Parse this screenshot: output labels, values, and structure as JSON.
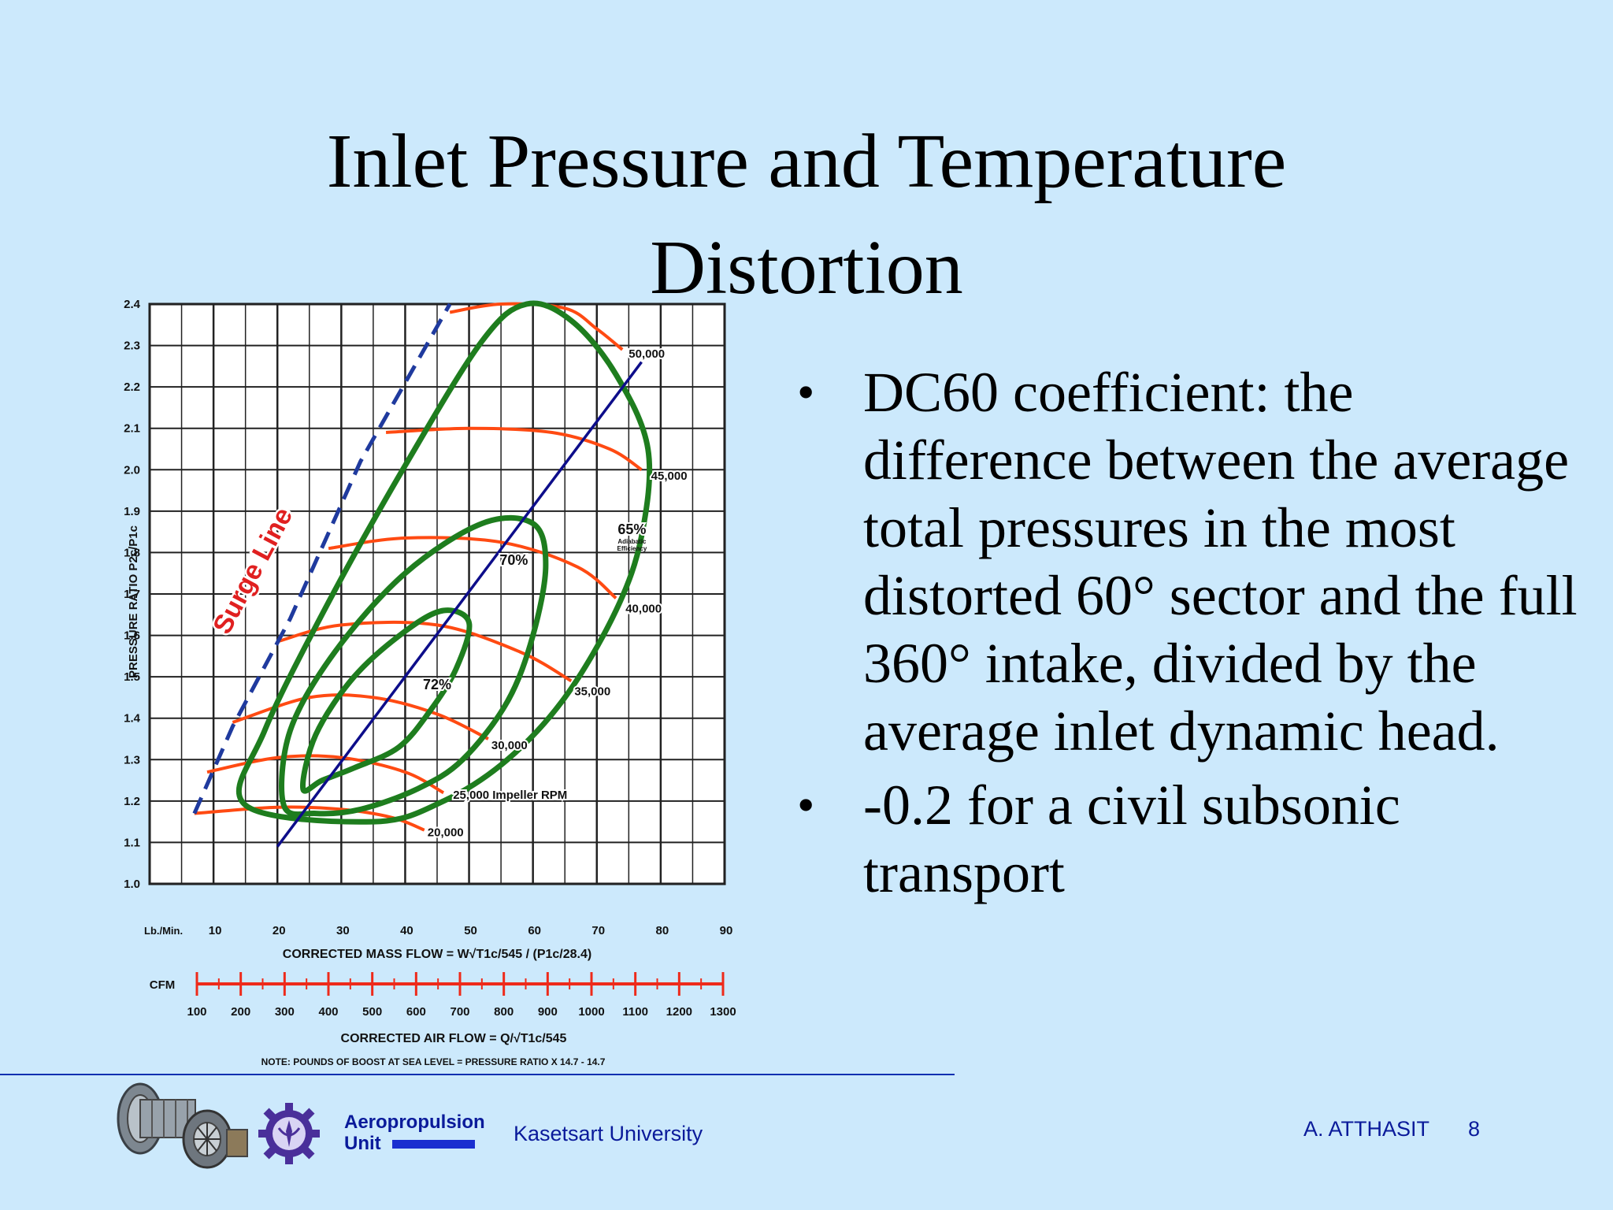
{
  "slide": {
    "title_line1": "Inlet Pressure and Temperature",
    "title_line2": "Distortion",
    "bullets": [
      "DC60 coefficient: the difference between the average total pressures in the most distorted 60° sector and the full 360° intake, divided by the average inlet dynamic head.",
      "-0.2 for a civil subsonic transport"
    ]
  },
  "footer": {
    "unit_line1": "Aeropropulsion",
    "unit_line2": "Unit",
    "university": "Kasetsart University",
    "author": "A. ATTHASIT",
    "page_number": "8",
    "logos": [
      "turbofan-engine-logo",
      "gear-emblem-logo"
    ]
  },
  "colors": {
    "background": "#cce9fc",
    "rpm_lines": "#ff4a12",
    "efficiency_islands": "#1e7d1e",
    "surge_line": "#1f3a9e",
    "operating_line": "#0d0d8a",
    "surge_label": "#e02020",
    "cfm_scale": "#ee2a1a",
    "footer_text": "#0a1a9a"
  },
  "chart_data": {
    "type": "line",
    "title": "",
    "xlabel": "CORRECTED MASS FLOW = W√T1c/545 / (P1c/28.4)",
    "x_unit_label": "Lb./Min.",
    "ylabel": "PRESSURE RATIO P2c/P1c",
    "xlim": [
      0,
      90
    ],
    "ylim": [
      1.0,
      2.4
    ],
    "grid": true,
    "x_ticks": [
      "10",
      "20",
      "30",
      "40",
      "50",
      "60",
      "70",
      "80",
      "90"
    ],
    "y_ticks": [
      "1.0",
      "1.1",
      "1.2",
      "1.3",
      "1.4",
      "1.5",
      "1.6",
      "1.7",
      "1.8",
      "1.9",
      "2.0",
      "2.1",
      "2.2",
      "2.3",
      "2.4"
    ],
    "secondary_axis": {
      "unit_label": "CFM",
      "label": "CORRECTED AIR FLOW = Q/√T1c/545",
      "ticks": [
        "100",
        "200",
        "300",
        "400",
        "500",
        "600",
        "700",
        "800",
        "900",
        "1000",
        "1100",
        "1200",
        "1300"
      ]
    },
    "note": "NOTE: POUNDS OF BOOST AT SEA LEVEL = PRESSURE RATIO X 14.7 - 14.7",
    "rpm_lines": [
      {
        "label": "20,000",
        "points": [
          [
            7,
            1.17
          ],
          [
            20,
            1.185
          ],
          [
            30,
            1.18
          ],
          [
            38,
            1.16
          ],
          [
            43,
            1.13
          ]
        ],
        "label_at": [
          43,
          1.125
        ]
      },
      {
        "label": "25,000 Impeller RPM",
        "points": [
          [
            9,
            1.27
          ],
          [
            20,
            1.305
          ],
          [
            30,
            1.305
          ],
          [
            40,
            1.27
          ],
          [
            46,
            1.22
          ]
        ],
        "label_at": [
          47,
          1.215
        ]
      },
      {
        "label": "30,000",
        "points": [
          [
            13,
            1.39
          ],
          [
            25,
            1.45
          ],
          [
            35,
            1.45
          ],
          [
            45,
            1.41
          ],
          [
            53,
            1.35
          ]
        ],
        "label_at": [
          53,
          1.335
        ]
      },
      {
        "label": "35,000",
        "points": [
          [
            20,
            1.585
          ],
          [
            30,
            1.625
          ],
          [
            45,
            1.625
          ],
          [
            58,
            1.56
          ],
          [
            66,
            1.49
          ]
        ],
        "label_at": [
          66,
          1.465
        ]
      },
      {
        "label": "40,000",
        "points": [
          [
            28,
            1.81
          ],
          [
            40,
            1.835
          ],
          [
            55,
            1.825
          ],
          [
            67,
            1.765
          ],
          [
            73,
            1.69
          ]
        ],
        "label_at": [
          74,
          1.665
        ]
      },
      {
        "label": "45,000",
        "points": [
          [
            37,
            2.09
          ],
          [
            50,
            2.1
          ],
          [
            63,
            2.09
          ],
          [
            72,
            2.05
          ],
          [
            77,
            2.0
          ]
        ],
        "label_at": [
          78,
          1.985
        ]
      },
      {
        "label": "50,000",
        "points": [
          [
            47,
            2.38
          ],
          [
            55,
            2.4
          ],
          [
            65,
            2.39
          ],
          [
            70,
            2.34
          ],
          [
            74,
            2.29
          ]
        ],
        "label_at": [
          74.5,
          2.28
        ]
      }
    ],
    "efficiency_islands": [
      {
        "label": "72%",
        "points": [
          [
            24,
            1.23
          ],
          [
            26,
            1.36
          ],
          [
            32,
            1.5
          ],
          [
            40,
            1.61
          ],
          [
            46,
            1.66
          ],
          [
            50,
            1.63
          ],
          [
            48,
            1.52
          ],
          [
            44,
            1.42
          ],
          [
            39,
            1.33
          ],
          [
            32,
            1.28
          ],
          [
            27,
            1.25
          ]
        ],
        "label_at": [
          45,
          1.47
        ]
      },
      {
        "label": "70%",
        "points": [
          [
            21,
            1.19
          ],
          [
            22,
            1.37
          ],
          [
            29,
            1.56
          ],
          [
            40,
            1.75
          ],
          [
            52,
            1.87
          ],
          [
            60,
            1.87
          ],
          [
            62,
            1.77
          ],
          [
            60,
            1.6
          ],
          [
            56,
            1.44
          ],
          [
            49,
            1.3
          ],
          [
            42,
            1.23
          ],
          [
            33,
            1.18
          ],
          [
            26,
            1.17
          ]
        ],
        "label_at": [
          57,
          1.77
        ]
      },
      {
        "label": "65%",
        "points": [
          [
            15,
            1.19
          ],
          [
            18,
            1.37
          ],
          [
            28,
            1.68
          ],
          [
            40,
            2.01
          ],
          [
            52,
            2.31
          ],
          [
            59,
            2.4
          ],
          [
            66,
            2.36
          ],
          [
            73,
            2.23
          ],
          [
            78,
            2.05
          ],
          [
            77,
            1.84
          ],
          [
            73,
            1.66
          ],
          [
            65,
            1.45
          ],
          [
            56,
            1.3
          ],
          [
            46,
            1.2
          ],
          [
            35,
            1.15
          ]
        ],
        "label_at": [
          75.5,
          1.845
        ],
        "sublabel": [
          "Adiabatic",
          "Efficiency"
        ]
      }
    ],
    "surge_line": {
      "label": "Surge Line",
      "points": [
        [
          7,
          1.17
        ],
        [
          13,
          1.38
        ],
        [
          22,
          1.64
        ],
        [
          33,
          2.02
        ],
        [
          47,
          2.4
        ]
      ]
    },
    "operating_line": {
      "points": [
        [
          20,
          1.09
        ],
        [
          77,
          2.26
        ]
      ]
    }
  }
}
